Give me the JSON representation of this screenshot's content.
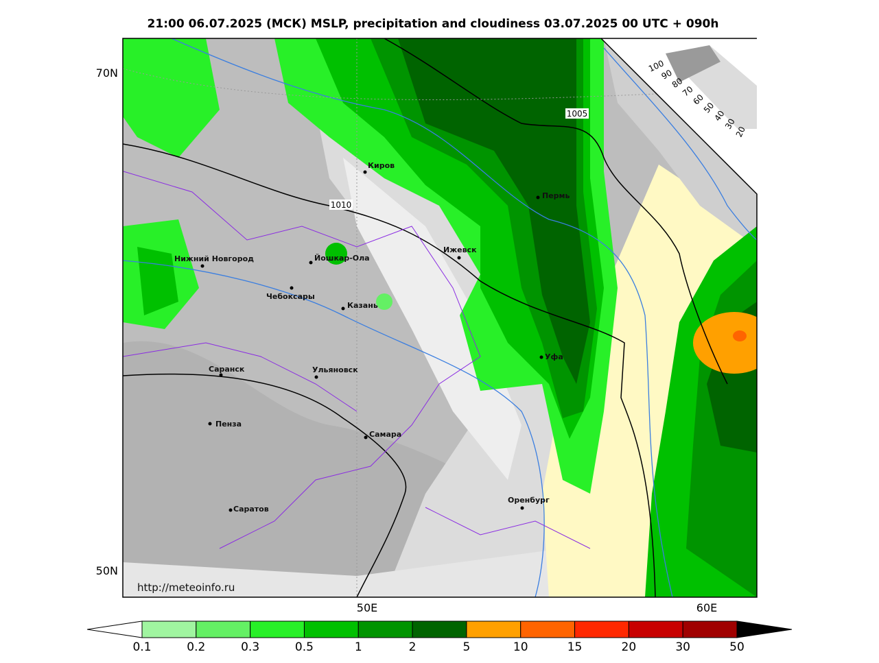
{
  "title": "21:00 06.07.2025 (МСК) MSLP, precipitation and cloudiness 03.07.2025 00 UTC + 090h",
  "lat_labels": [
    "70N",
    "50N"
  ],
  "lon_labels": [
    "50E",
    "60E"
  ],
  "isobar_labels": [
    "1005",
    "1010"
  ],
  "cities": [
    "Киров",
    "Пермь",
    "Нижний Новгород",
    "Йошкар-Ола",
    "Ижевск",
    "Чебоксары",
    "Казань",
    "Уфа",
    "Саранск",
    "Ульяновск",
    "Пенза",
    "Самара",
    "Оренбург",
    "Саратов"
  ],
  "cloud_scale": [
    100,
    90,
    80,
    70,
    60,
    50,
    40,
    30,
    20
  ],
  "colorbar": {
    "labels": [
      0.1,
      0.2,
      0.3,
      0.5,
      1,
      2,
      5,
      10,
      15,
      20,
      30,
      50
    ],
    "colors": [
      "#a0f5a0",
      "#64f064",
      "#28f028",
      "#00c000",
      "#009400",
      "#006400",
      "#ffa000",
      "#ff6400",
      "#ff2800",
      "#c80000",
      "#a00000"
    ]
  },
  "url": "http://meteoinfo.ru"
}
